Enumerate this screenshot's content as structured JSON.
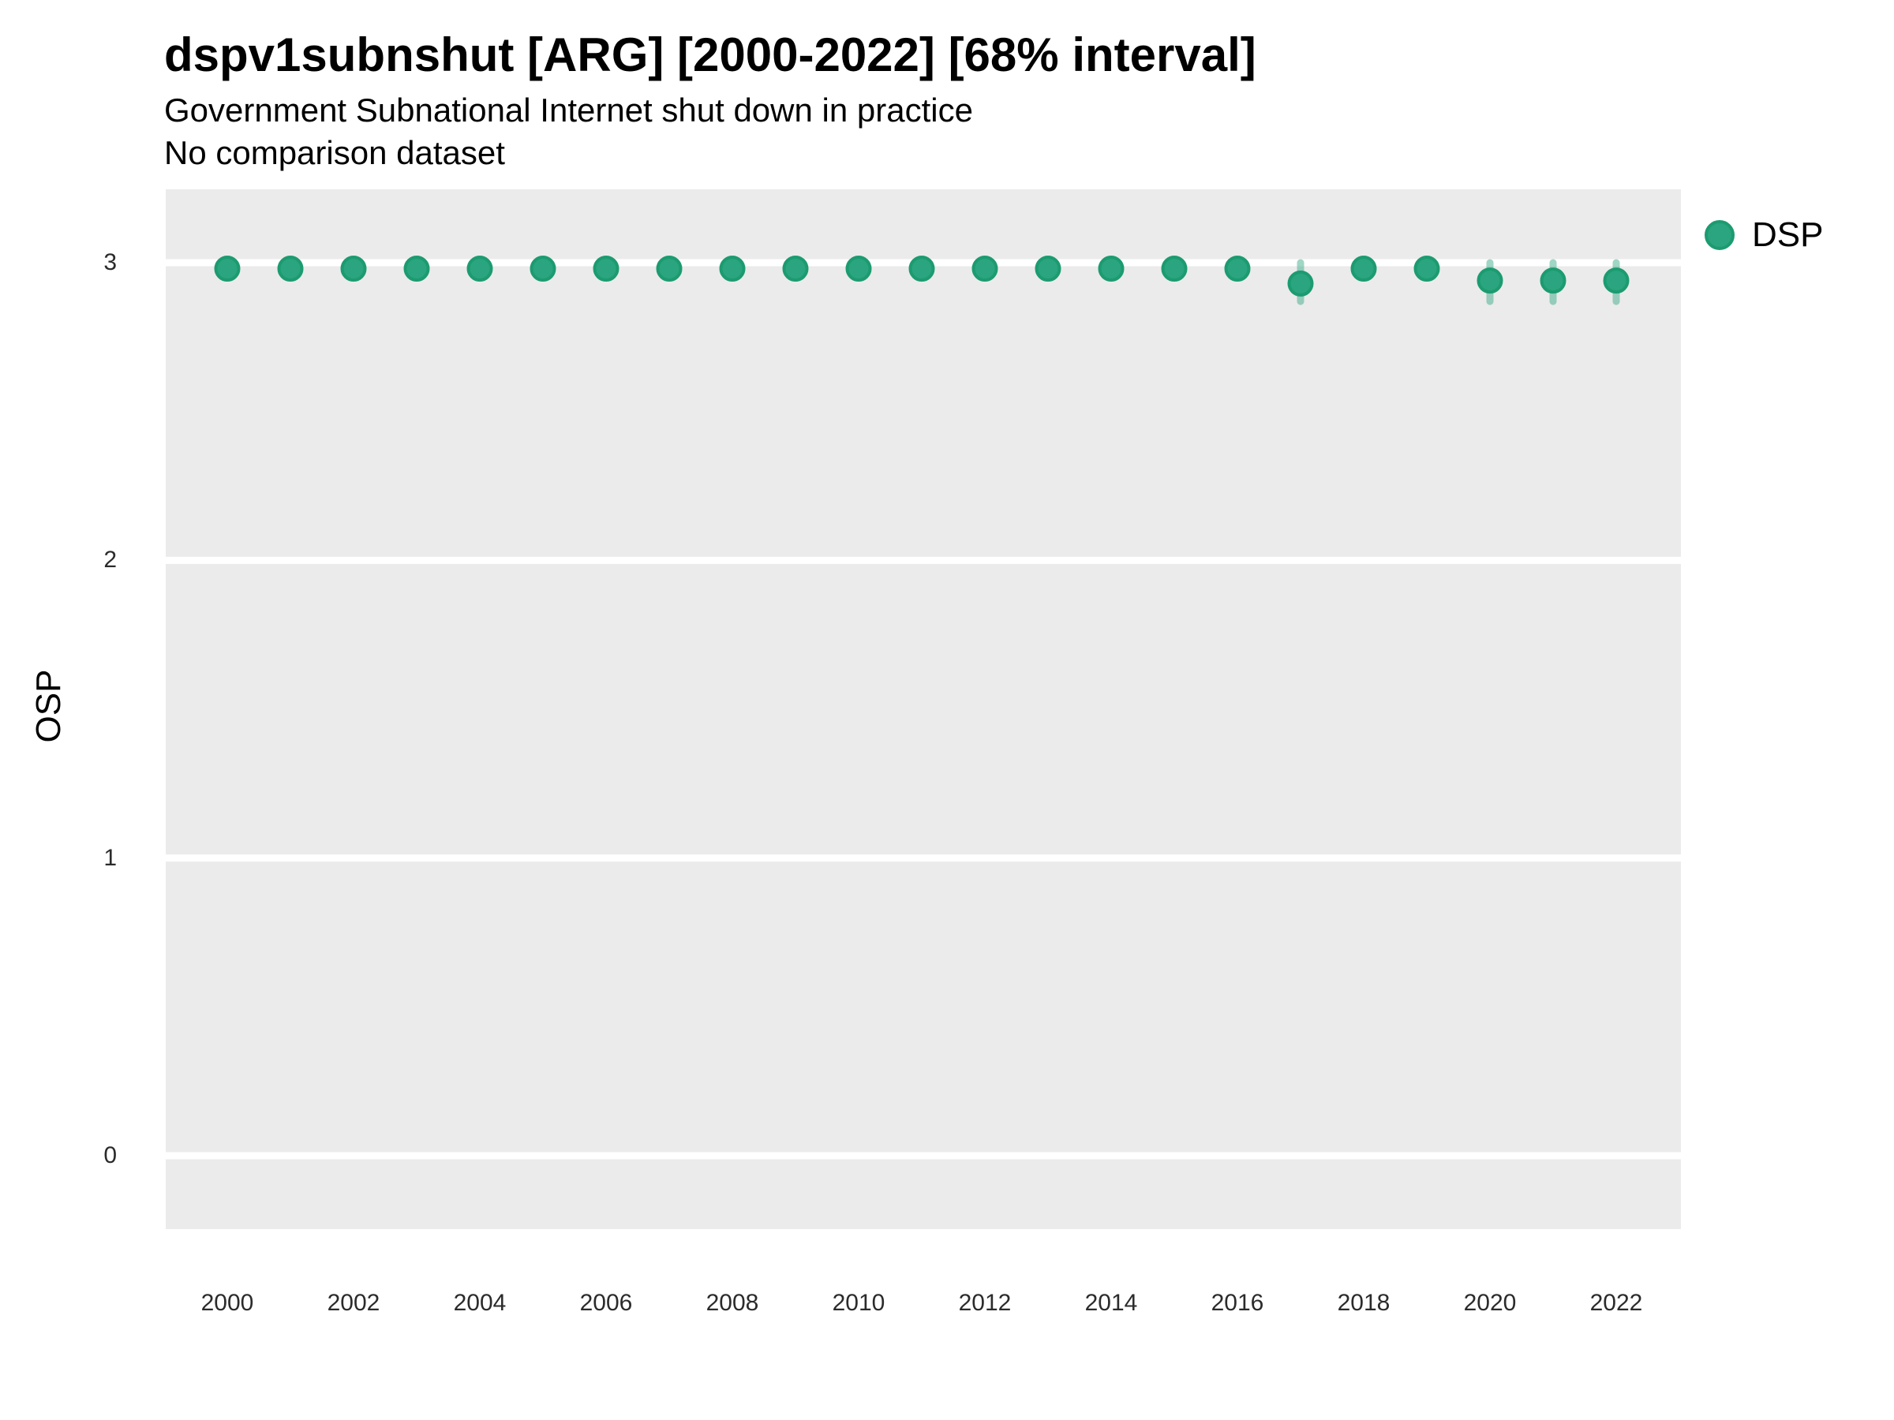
{
  "header": {
    "title": "dspv1subnshut [ARG] [2000-2022] [68% interval]",
    "subtitle": "Government Subnational Internet shut down in practice",
    "comparison_note": "No comparison dataset"
  },
  "legend": {
    "items": [
      {
        "label": "DSP",
        "marker_fill": "#2aa57f",
        "marker_stroke": "#1c9b70"
      }
    ],
    "position": "right-top"
  },
  "colors": {
    "panel_background": "#ebebeb",
    "gridline": "#ffffff",
    "point_fill": "#2aa57f",
    "point_stroke": "#1c9b70",
    "interval_bar": "rgba(42,165,127,0.45)",
    "axis_text": "#2b2b2b",
    "title_text": "#000000"
  },
  "chart_data": {
    "type": "scatter",
    "title": "dspv1subnshut [ARG] [2000-2022] [68% interval]",
    "subtitle": "Government Subnational Internet shut down in practice",
    "note": "No comparison dataset",
    "xlabel": "",
    "ylabel": "OSP",
    "xlim": [
      1999.025,
      2023.025
    ],
    "ylim": [
      -0.2465,
      3.2465
    ],
    "xticks": [
      2000,
      2002,
      2004,
      2006,
      2008,
      2010,
      2012,
      2014,
      2016,
      2018,
      2020,
      2022
    ],
    "yticks": [
      0,
      1,
      2,
      3
    ],
    "grid": "major-horizontal-white-on-gray-panel",
    "legend_position": "right-top",
    "interval_level": "68%",
    "series": [
      {
        "name": "DSP",
        "points": [
          {
            "year": 2000,
            "value": 2.98,
            "lo": 2.95,
            "hi": 3.0
          },
          {
            "year": 2001,
            "value": 2.98,
            "lo": 2.95,
            "hi": 3.0
          },
          {
            "year": 2002,
            "value": 2.98,
            "lo": 2.95,
            "hi": 3.0
          },
          {
            "year": 2003,
            "value": 2.98,
            "lo": 2.95,
            "hi": 3.0
          },
          {
            "year": 2004,
            "value": 2.98,
            "lo": 2.95,
            "hi": 3.0
          },
          {
            "year": 2005,
            "value": 2.98,
            "lo": 2.95,
            "hi": 3.0
          },
          {
            "year": 2006,
            "value": 2.98,
            "lo": 2.95,
            "hi": 3.0
          },
          {
            "year": 2007,
            "value": 2.98,
            "lo": 2.95,
            "hi": 3.0
          },
          {
            "year": 2008,
            "value": 2.98,
            "lo": 2.95,
            "hi": 3.0
          },
          {
            "year": 2009,
            "value": 2.98,
            "lo": 2.95,
            "hi": 3.0
          },
          {
            "year": 2010,
            "value": 2.98,
            "lo": 2.95,
            "hi": 3.0
          },
          {
            "year": 2011,
            "value": 2.98,
            "lo": 2.95,
            "hi": 3.0
          },
          {
            "year": 2012,
            "value": 2.98,
            "lo": 2.95,
            "hi": 3.0
          },
          {
            "year": 2013,
            "value": 2.98,
            "lo": 2.95,
            "hi": 3.0
          },
          {
            "year": 2014,
            "value": 2.98,
            "lo": 2.95,
            "hi": 3.0
          },
          {
            "year": 2015,
            "value": 2.98,
            "lo": 2.95,
            "hi": 3.0
          },
          {
            "year": 2016,
            "value": 2.98,
            "lo": 2.95,
            "hi": 3.0
          },
          {
            "year": 2017,
            "value": 2.93,
            "lo": 2.87,
            "hi": 3.0
          },
          {
            "year": 2018,
            "value": 2.98,
            "lo": 2.95,
            "hi": 3.0
          },
          {
            "year": 2019,
            "value": 2.98,
            "lo": 2.95,
            "hi": 3.0
          },
          {
            "year": 2020,
            "value": 2.94,
            "lo": 2.87,
            "hi": 3.0
          },
          {
            "year": 2021,
            "value": 2.94,
            "lo": 2.87,
            "hi": 3.0
          },
          {
            "year": 2022,
            "value": 2.94,
            "lo": 2.87,
            "hi": 3.0
          }
        ]
      }
    ]
  }
}
